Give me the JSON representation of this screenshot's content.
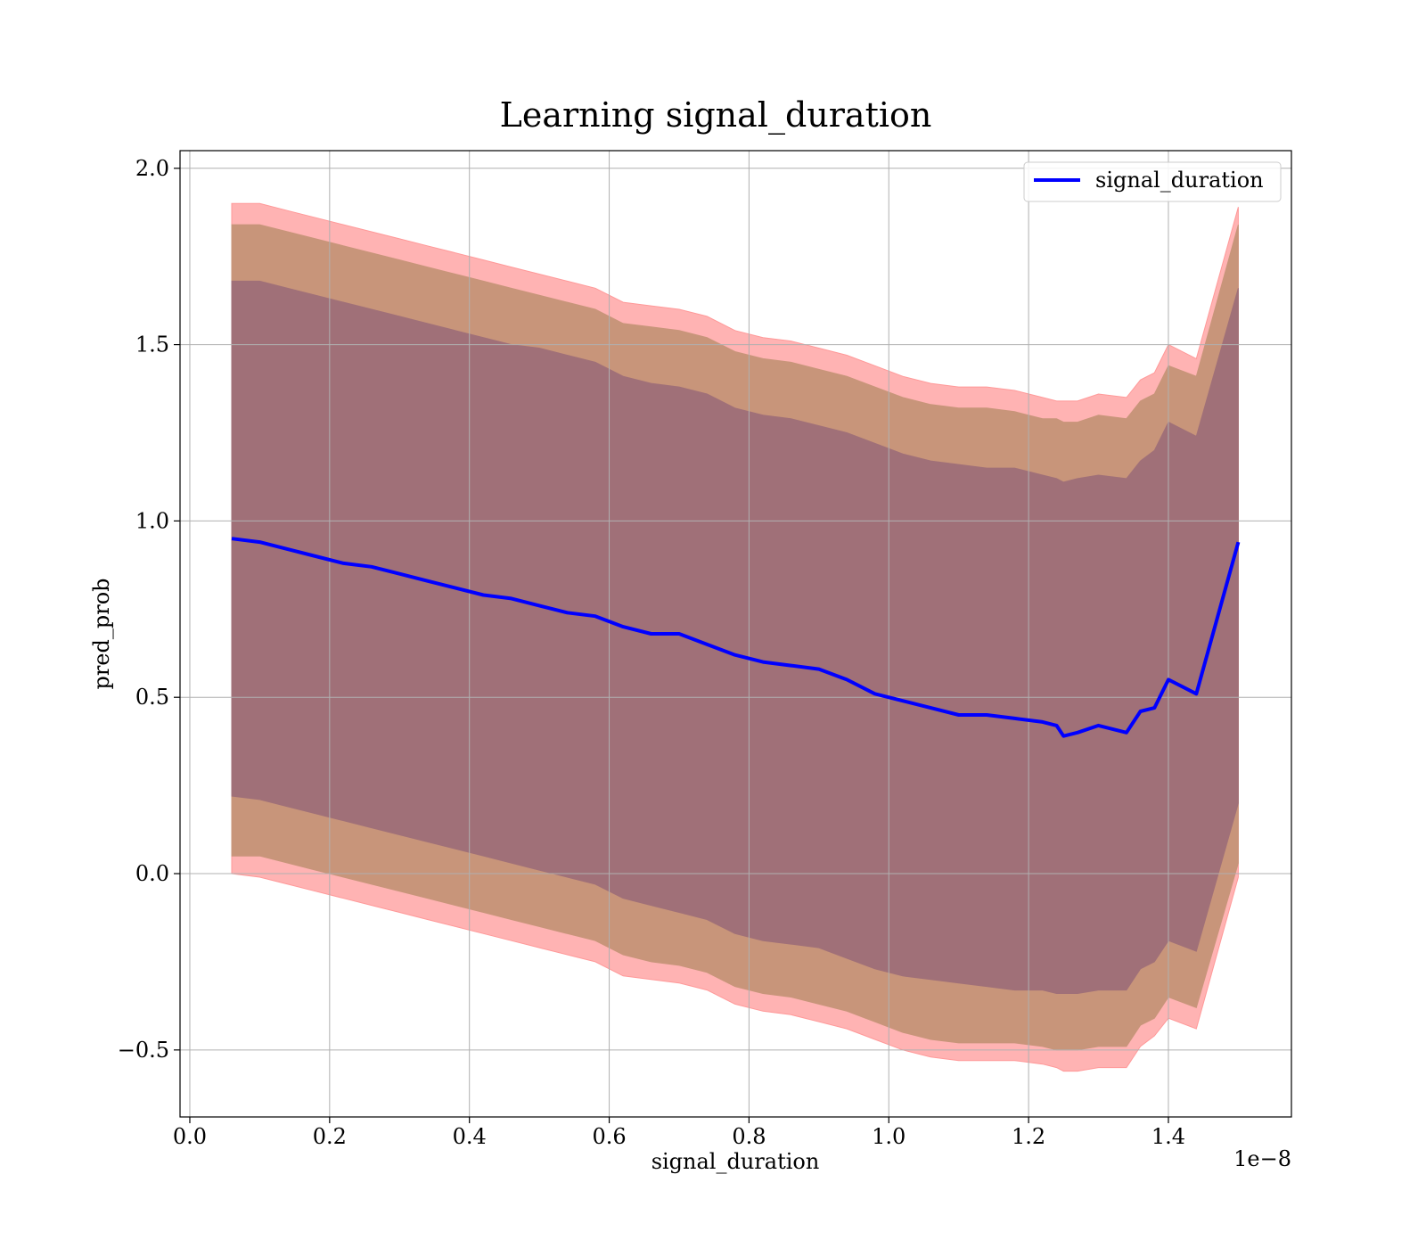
{
  "chart_data": {
    "type": "line",
    "title": "Learning signal_duration",
    "xlabel": "signal_duration",
    "ylabel": "pred_prob",
    "x_offset_label": "1e−8",
    "xlim": [
      -0.014,
      1.576
    ],
    "ylim": [
      -0.69,
      2.05
    ],
    "grid": true,
    "legend_position": "top-right",
    "x_ticks": [
      0.0,
      0.2,
      0.4,
      0.6,
      0.8,
      1.0,
      1.2,
      1.4
    ],
    "x_tick_labels": [
      "0.0",
      "0.2",
      "0.4",
      "0.6",
      "0.8",
      "1.0",
      "1.2",
      "1.4"
    ],
    "y_ticks": [
      -0.5,
      0.0,
      0.5,
      1.0,
      1.5,
      2.0
    ],
    "y_tick_labels": [
      "−0.5",
      "0.0",
      "0.5",
      "1.0",
      "1.5",
      "2.0"
    ],
    "colors": {
      "line": "#0000ff",
      "outer_band": "#ff9999",
      "middle_band": "#c8957a",
      "inner_band": "#a07078",
      "grid": "#b0b0b0"
    },
    "series": [
      {
        "name": "signal_duration",
        "x": [
          0.06,
          0.1,
          0.14,
          0.18,
          0.22,
          0.26,
          0.3,
          0.34,
          0.38,
          0.42,
          0.46,
          0.5,
          0.54,
          0.58,
          0.62,
          0.66,
          0.7,
          0.74,
          0.78,
          0.82,
          0.86,
          0.9,
          0.94,
          0.98,
          1.02,
          1.06,
          1.1,
          1.14,
          1.18,
          1.22,
          1.24,
          1.25,
          1.27,
          1.3,
          1.34,
          1.36,
          1.38,
          1.4,
          1.44,
          1.5
        ],
        "y": [
          0.95,
          0.94,
          0.92,
          0.9,
          0.88,
          0.87,
          0.85,
          0.83,
          0.81,
          0.79,
          0.78,
          0.76,
          0.74,
          0.73,
          0.7,
          0.68,
          0.68,
          0.65,
          0.62,
          0.6,
          0.59,
          0.58,
          0.55,
          0.51,
          0.49,
          0.47,
          0.45,
          0.45,
          0.44,
          0.43,
          0.42,
          0.39,
          0.4,
          0.42,
          0.4,
          0.46,
          0.47,
          0.55,
          0.51,
          0.94
        ],
        "band_inner": {
          "upper": [
            1.68,
            1.68,
            1.66,
            1.64,
            1.62,
            1.6,
            1.58,
            1.56,
            1.54,
            1.52,
            1.5,
            1.49,
            1.47,
            1.45,
            1.41,
            1.39,
            1.38,
            1.36,
            1.32,
            1.3,
            1.29,
            1.27,
            1.25,
            1.22,
            1.19,
            1.17,
            1.16,
            1.15,
            1.15,
            1.13,
            1.12,
            1.11,
            1.12,
            1.13,
            1.12,
            1.17,
            1.2,
            1.28,
            1.24,
            1.66
          ],
          "lower": [
            0.22,
            0.21,
            0.19,
            0.17,
            0.15,
            0.13,
            0.11,
            0.09,
            0.07,
            0.05,
            0.03,
            0.01,
            -0.01,
            -0.03,
            -0.07,
            -0.09,
            -0.11,
            -0.13,
            -0.17,
            -0.19,
            -0.2,
            -0.21,
            -0.24,
            -0.27,
            -0.29,
            -0.3,
            -0.31,
            -0.32,
            -0.33,
            -0.33,
            -0.34,
            -0.34,
            -0.34,
            -0.33,
            -0.33,
            -0.27,
            -0.25,
            -0.19,
            -0.22,
            0.2
          ]
        },
        "band_middle": {
          "upper": [
            1.84,
            1.84,
            1.82,
            1.8,
            1.78,
            1.76,
            1.74,
            1.72,
            1.7,
            1.68,
            1.66,
            1.64,
            1.62,
            1.6,
            1.56,
            1.55,
            1.54,
            1.52,
            1.48,
            1.46,
            1.45,
            1.43,
            1.41,
            1.38,
            1.35,
            1.33,
            1.32,
            1.32,
            1.31,
            1.29,
            1.29,
            1.28,
            1.28,
            1.3,
            1.29,
            1.34,
            1.36,
            1.44,
            1.41,
            1.84
          ],
          "lower": [
            0.05,
            0.05,
            0.03,
            0.01,
            -0.01,
            -0.03,
            -0.05,
            -0.07,
            -0.09,
            -0.11,
            -0.13,
            -0.15,
            -0.17,
            -0.19,
            -0.23,
            -0.25,
            -0.26,
            -0.28,
            -0.32,
            -0.34,
            -0.35,
            -0.37,
            -0.39,
            -0.42,
            -0.45,
            -0.47,
            -0.48,
            -0.48,
            -0.48,
            -0.49,
            -0.5,
            -0.5,
            -0.5,
            -0.49,
            -0.49,
            -0.43,
            -0.41,
            -0.35,
            -0.38,
            0.03
          ]
        },
        "band_outer": {
          "upper": [
            1.9,
            1.9,
            1.88,
            1.86,
            1.84,
            1.82,
            1.8,
            1.78,
            1.76,
            1.74,
            1.72,
            1.7,
            1.68,
            1.66,
            1.62,
            1.61,
            1.6,
            1.58,
            1.54,
            1.52,
            1.51,
            1.49,
            1.47,
            1.44,
            1.41,
            1.39,
            1.38,
            1.38,
            1.37,
            1.35,
            1.34,
            1.34,
            1.34,
            1.36,
            1.35,
            1.4,
            1.42,
            1.5,
            1.46,
            1.89
          ],
          "lower": [
            0.0,
            -0.01,
            -0.03,
            -0.05,
            -0.07,
            -0.09,
            -0.11,
            -0.13,
            -0.15,
            -0.17,
            -0.19,
            -0.21,
            -0.23,
            -0.25,
            -0.29,
            -0.3,
            -0.31,
            -0.33,
            -0.37,
            -0.39,
            -0.4,
            -0.42,
            -0.44,
            -0.47,
            -0.5,
            -0.52,
            -0.53,
            -0.53,
            -0.53,
            -0.54,
            -0.55,
            -0.56,
            -0.56,
            -0.55,
            -0.55,
            -0.49,
            -0.46,
            -0.41,
            -0.44,
            -0.01
          ]
        }
      }
    ]
  }
}
